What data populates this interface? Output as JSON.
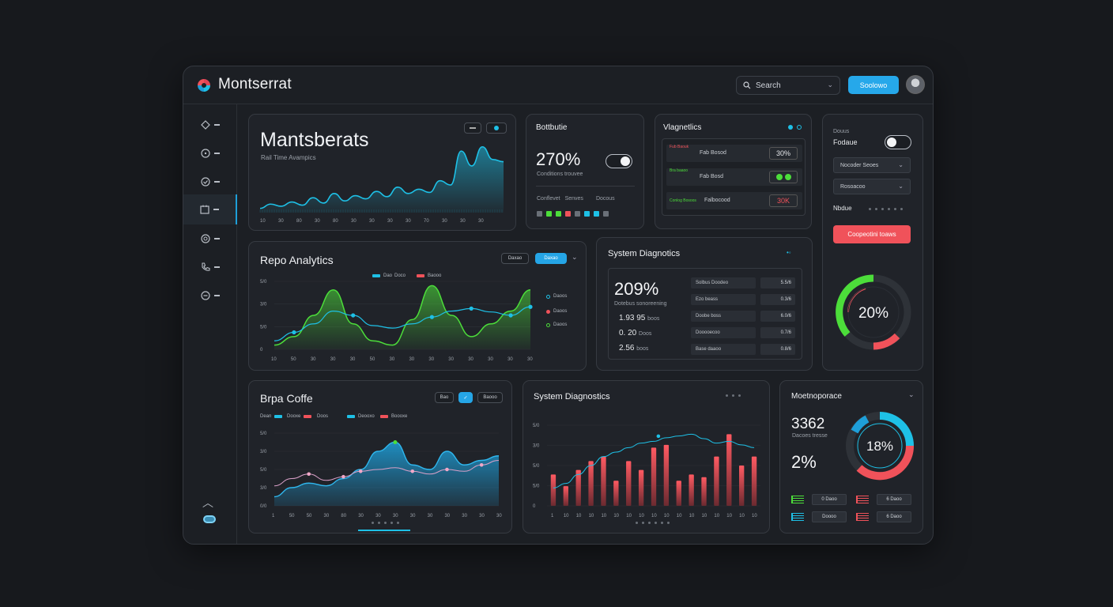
{
  "header": {
    "title": "Montserrat",
    "search_placeholder": "Search",
    "primary_button": "Soolowo"
  },
  "colors": {
    "accent": "#26a8ea",
    "green": "#4cdd3a",
    "red": "#f0525a",
    "teal": "#1ec0e6"
  },
  "sidebar": {
    "items": [
      {
        "icon": "pin-icon"
      },
      {
        "icon": "circle-dot-icon"
      },
      {
        "icon": "check-circle-icon"
      },
      {
        "icon": "calendar-icon",
        "active": true
      },
      {
        "icon": "location-icon"
      },
      {
        "icon": "phone-icon"
      },
      {
        "icon": "minus-circle-icon"
      }
    ]
  },
  "hero": {
    "title": "Mantsberats",
    "subtitle": "Rail Time Avampics",
    "x_ticks": [
      "10",
      "30",
      "30",
      "30",
      "80",
      "30",
      "30",
      "80",
      "80",
      "70",
      "30",
      "30",
      "30",
      "30",
      "30",
      "80",
      "30",
      "30",
      "70",
      "30",
      "30",
      "30",
      "30",
      "30",
      "30",
      "30"
    ]
  },
  "battery": {
    "title": "Bottbutie",
    "value": "270%",
    "sub": "Conditions trouvee",
    "row_labels": [
      "Conflevet",
      "Senves",
      "Docous"
    ],
    "swatch_colors": [
      "#6a7078",
      "#4cdd3a",
      "#4cdd3a",
      "#f0525a",
      "#6a7078",
      "#1ec0e6",
      "#1ec0e6",
      "#6a7078"
    ]
  },
  "diagnostics_small": {
    "title": "Vlagnetlics",
    "rows": [
      {
        "tag": "Fub Baouk",
        "label": "Fab Bosod",
        "value": "30%",
        "type": "text"
      },
      {
        "tag": "Bra baaoo",
        "label": "Fab Bosd",
        "value": "",
        "type": "dots"
      },
      {
        "tag": "Conlog Bosoos",
        "label": "Falbocood",
        "value": "30K",
        "type": "red"
      }
    ]
  },
  "settings": {
    "label_small": "Douus",
    "label_main": "Fodaue",
    "dropdown1": "Nocoder Seoes",
    "dropdown2": "Rosoacoo",
    "mode_label": "Nbdue",
    "button": "Coopeotini toaws",
    "gauge_value": "20%"
  },
  "repo": {
    "title": "Repo Analytics",
    "pill1": "Daxao",
    "pill2": "Daxao",
    "legend": [
      "Dao",
      "Doco",
      "Baooo"
    ],
    "side_legend": [
      "Daoos",
      "Daoos",
      "Daoos"
    ],
    "y_ticks": [
      "0",
      "5/0",
      "3/0",
      "5/0"
    ],
    "x_ticks": [
      "10",
      "50",
      "30",
      "30",
      "30",
      "50",
      "30",
      "30",
      "30",
      "30",
      "30",
      "30",
      "30",
      "30"
    ]
  },
  "sys_diag": {
    "title": "System Diagnotics",
    "big_value": "209%",
    "big_sub": "Dotebus sonoreening",
    "lines": [
      {
        "value": "1.93 95",
        "unit": "boos"
      },
      {
        "value": "0. 20",
        "unit": "Doos"
      },
      {
        "value": "2.56",
        "unit": "boos"
      }
    ],
    "rows": [
      {
        "label": "Solbus Doodeo",
        "value": "5.5/6"
      },
      {
        "label": "Ezo beass",
        "value": "0.3/6"
      },
      {
        "label": "Doobe boss",
        "value": "6.0/6"
      },
      {
        "label": "Dooooecoo",
        "value": "0.7/6"
      },
      {
        "label": "Base daaoo",
        "value": "0.8/6"
      }
    ]
  },
  "brpa": {
    "title": "Brpa Coffe",
    "pill1": "Bao",
    "pill3": "Baooo",
    "legend": [
      "Dean",
      "Dooxe",
      "Doos",
      "Deooxo",
      "Boooxe"
    ],
    "y_ticks": [
      "5/0",
      "3/0",
      "5/0",
      "3/0",
      "0/0"
    ],
    "x_ticks": [
      "1",
      "50",
      "50",
      "30",
      "80",
      "30",
      "30",
      "30",
      "30",
      "30",
      "30",
      "30",
      "30",
      "30"
    ]
  },
  "sys_diag2": {
    "title": "System Diagnostics",
    "y_ticks": [
      "5/0",
      "3/0",
      "5/0",
      "5/0",
      "0"
    ],
    "x_ticks": [
      "1",
      "10",
      "10",
      "10",
      "10",
      "10",
      "10",
      "10",
      "10",
      "10",
      "10",
      "10",
      "10",
      "10",
      "10",
      "10",
      "10",
      "10",
      "10",
      "10",
      "10"
    ]
  },
  "macro": {
    "title": "Moetnoporace",
    "value1": "3362",
    "sub1": "Dacoes tresse",
    "value2": "2%",
    "donut_value": "18%",
    "rows": [
      {
        "label": "0 Daoo",
        "color": "#4cdd3a"
      },
      {
        "label": "6 Daoo",
        "color": "#f0525a"
      },
      {
        "label": "Doooo",
        "color": "#1ec0e6"
      },
      {
        "label": "6 Daoo",
        "color": "#f0525a"
      }
    ]
  },
  "chart_data": [
    {
      "type": "area",
      "title": "Mantsberats",
      "series": [
        {
          "values": [
            4,
            8,
            6,
            10,
            7,
            14,
            9,
            18,
            11,
            16,
            13,
            20,
            15,
            24,
            18,
            22,
            19,
            30,
            26,
            58,
            44,
            62,
            50,
            48
          ]
        }
      ],
      "ylim": [
        0,
        70
      ]
    },
    {
      "type": "line",
      "title": "Repo Analytics",
      "x": [
        0,
        1,
        2,
        3,
        4,
        5,
        6,
        7,
        8,
        9,
        10,
        11,
        12,
        13
      ],
      "series": [
        {
          "name": "Dao",
          "values": [
            10,
            20,
            30,
            45,
            40,
            28,
            25,
            30,
            38,
            45,
            48,
            44,
            40,
            50
          ]
        },
        {
          "name": "Doco",
          "values": [
            5,
            15,
            40,
            70,
            30,
            10,
            5,
            35,
            75,
            40,
            15,
            30,
            45,
            70
          ]
        }
      ],
      "ylim": [
        0,
        80
      ]
    },
    {
      "type": "area",
      "title": "Brpa Coffe",
      "x": [
        0,
        1,
        2,
        3,
        4,
        5,
        6,
        7,
        8,
        9,
        10,
        11,
        12,
        13
      ],
      "series": [
        {
          "name": "Dean",
          "values": [
            10,
            20,
            25,
            22,
            30,
            40,
            60,
            70,
            45,
            40,
            60,
            45,
            50,
            55
          ]
        },
        {
          "name": "Doos",
          "values": [
            22,
            30,
            35,
            28,
            32,
            38,
            40,
            42,
            38,
            35,
            40,
            38,
            45,
            50
          ]
        }
      ],
      "ylim": [
        0,
        80
      ]
    },
    {
      "type": "bar",
      "title": "System Diagnostics",
      "values": [
        35,
        22,
        40,
        50,
        55,
        28,
        50,
        40,
        65,
        68,
        28,
        35,
        32,
        55,
        80,
        45,
        55
      ],
      "line": [
        20,
        25,
        35,
        45,
        55,
        60,
        65,
        70,
        72,
        76,
        78,
        80,
        75,
        70,
        72,
        68,
        65
      ],
      "ylim": [
        0,
        90
      ]
    }
  ]
}
